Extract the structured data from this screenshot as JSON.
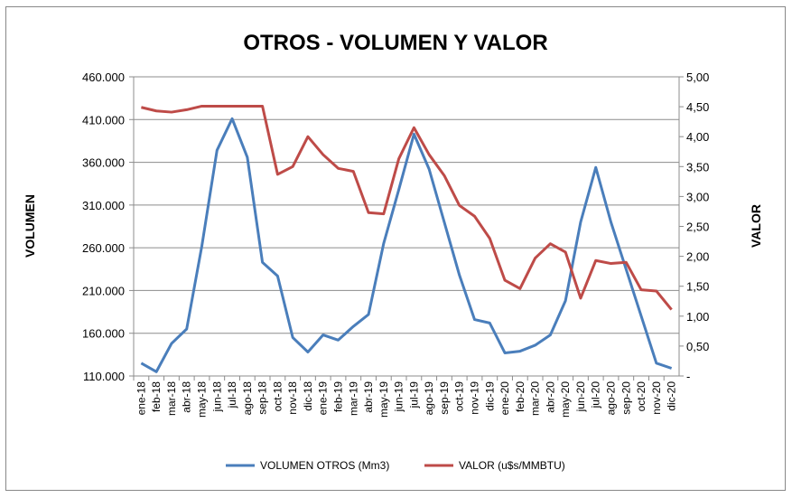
{
  "chart_data": {
    "type": "line",
    "title": "OTROS - VOLUMEN Y VALOR",
    "ylabel": "VOLUMEN",
    "y2label": "VALOR",
    "ylim": [
      110000,
      460000
    ],
    "y2lim": [
      0,
      5
    ],
    "grid": true,
    "legend_position": "bottom",
    "yticks": [
      "110.000",
      "160.000",
      "210.000",
      "260.000",
      "310.000",
      "360.000",
      "410.000",
      "460.000"
    ],
    "y2ticks": [
      "-",
      "0,50",
      "1,00",
      "1,50",
      "2,00",
      "2,50",
      "3,00",
      "3,50",
      "4,00",
      "4,50",
      "5,00"
    ],
    "categories": [
      "ene-18",
      "feb-18",
      "mar-18",
      "abr-18",
      "may-18",
      "jun-18",
      "jul-18",
      "ago-18",
      "sep-18",
      "oct-18",
      "nov-18",
      "dic-18",
      "ene-19",
      "feb-19",
      "mar-19",
      "abr-19",
      "may-19",
      "jun-19",
      "jul-19",
      "ago-19",
      "sep-19",
      "oct-19",
      "nov-19",
      "dic-19",
      "ene-20",
      "feb-20",
      "mar-20",
      "abr-20",
      "may-20",
      "jun-20",
      "jul-20",
      "ago-20",
      "sep-20",
      "oct-20",
      "nov-20",
      "dic-20"
    ],
    "series": [
      {
        "name": "VOLUMEN OTROS (Mm3)",
        "axis": "left",
        "color": "#4a7ebb",
        "values": [
          125000,
          115000,
          148000,
          165000,
          262000,
          374000,
          411000,
          366000,
          243000,
          227000,
          155000,
          138000,
          158000,
          152000,
          168000,
          182000,
          265000,
          328000,
          393000,
          352000,
          290000,
          228000,
          176000,
          172000,
          137000,
          139000,
          146000,
          158000,
          198000,
          290000,
          354000,
          290000,
          235000,
          180000,
          125000,
          119000
        ]
      },
      {
        "name": "VALOR (u$s/MMBTU)",
        "axis": "right",
        "color": "#be4b48",
        "values": [
          4.49,
          4.43,
          4.41,
          4.45,
          4.51,
          4.51,
          4.51,
          4.51,
          4.51,
          3.37,
          3.5,
          4.0,
          3.7,
          3.47,
          3.42,
          2.73,
          2.71,
          3.63,
          4.15,
          3.7,
          3.35,
          2.85,
          2.67,
          2.3,
          1.6,
          1.46,
          1.97,
          2.21,
          2.07,
          1.3,
          1.93,
          1.88,
          1.9,
          1.44,
          1.42,
          1.11
        ]
      }
    ]
  }
}
